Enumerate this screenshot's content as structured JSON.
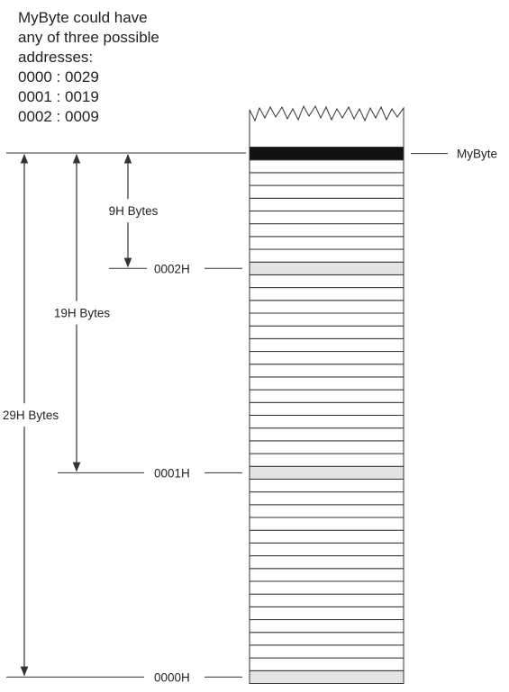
{
  "note": {
    "lines": [
      "MyByte could have",
      "any of three possible",
      "addresses:",
      "0000 : 0029",
      "0001 : 0019",
      "0002 : 0009"
    ]
  },
  "memory": {
    "total_bytes": 42,
    "target_byte_index": 41,
    "segment_starts": [
      {
        "index": 0,
        "label": "0000H"
      },
      {
        "index": 16,
        "label": "0001H"
      },
      {
        "index": 32,
        "label": "0002H"
      }
    ]
  },
  "target_label": "MyByte",
  "offsets": [
    {
      "label": "9H Bytes",
      "from_segment": 2
    },
    {
      "label": "19H Bytes",
      "from_segment": 1
    },
    {
      "label": "29H Bytes",
      "from_segment": 0
    }
  ],
  "colors": {
    "line": "#333333",
    "target_fill": "#111111",
    "segment_fill": "#e4e4e4",
    "cell_fill": "#ffffff"
  }
}
